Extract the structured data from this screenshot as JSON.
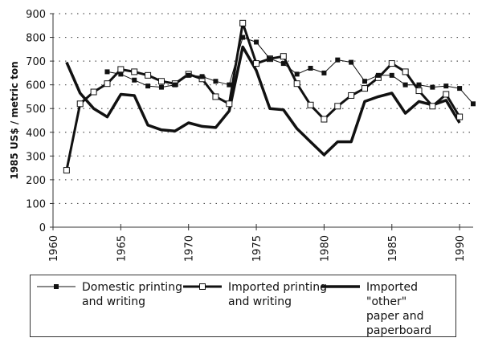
{
  "chart_data": {
    "type": "line",
    "title": "",
    "xlabel": "",
    "ylabel": "1985 US$ / metric ton",
    "xlim": [
      1960,
      1991
    ],
    "ylim": [
      0,
      900
    ],
    "x_ticks": [
      1960,
      1965,
      1970,
      1975,
      1980,
      1985,
      1990
    ],
    "y_ticks": [
      0,
      100,
      200,
      300,
      400,
      500,
      600,
      700,
      800,
      900
    ],
    "grid": "horizontal dotted",
    "legend_position": "bottom",
    "series": [
      {
        "name": "Domestic printing and writing",
        "style": "thin line, filled square markers",
        "x": [
          1964,
          1965,
          1966,
          1967,
          1968,
          1969,
          1970,
          1971,
          1972,
          1973,
          1974,
          1975,
          1976,
          1977,
          1978,
          1979,
          1980,
          1981,
          1982,
          1983,
          1984,
          1985,
          1986,
          1987,
          1988,
          1989,
          1990,
          1991
        ],
        "values": [
          655,
          645,
          620,
          595,
          590,
          600,
          640,
          635,
          615,
          600,
          800,
          780,
          710,
          690,
          645,
          670,
          650,
          705,
          695,
          615,
          640,
          640,
          600,
          600,
          590,
          595,
          585,
          520
        ]
      },
      {
        "name": "Imported printing and writing",
        "style": "thick line, open square markers",
        "x": [
          1961,
          1962,
          1963,
          1964,
          1965,
          1966,
          1967,
          1968,
          1969,
          1970,
          1971,
          1972,
          1973,
          1974,
          1975,
          1976,
          1977,
          1978,
          1979,
          1980,
          1981,
          1982,
          1983,
          1984,
          1985,
          1986,
          1987,
          1988,
          1989,
          1990
        ],
        "values": [
          240,
          520,
          570,
          605,
          665,
          655,
          640,
          615,
          605,
          645,
          625,
          550,
          520,
          860,
          690,
          710,
          720,
          605,
          515,
          455,
          510,
          555,
          585,
          630,
          690,
          655,
          575,
          510,
          560,
          465
        ]
      },
      {
        "name": "Imported \"other\" paper and paperboard",
        "style": "thick line, no markers",
        "x": [
          1961,
          1962,
          1963,
          1964,
          1965,
          1966,
          1967,
          1968,
          1969,
          1970,
          1971,
          1972,
          1973,
          1974,
          1975,
          1976,
          1977,
          1978,
          1979,
          1980,
          1981,
          1982,
          1983,
          1984,
          1985,
          1986,
          1987,
          1988,
          1989,
          1990
        ],
        "values": [
          695,
          565,
          500,
          465,
          560,
          555,
          430,
          410,
          405,
          440,
          425,
          420,
          490,
          760,
          660,
          500,
          495,
          415,
          360,
          305,
          360,
          360,
          530,
          550,
          565,
          480,
          530,
          515,
          535,
          440
        ]
      }
    ]
  },
  "legend": {
    "items": [
      {
        "label": "Domestic printing\nand writing"
      },
      {
        "label": "Imported printing\nand writing"
      },
      {
        "label": "Imported \"other\"\npaper and\npaperboard"
      }
    ]
  }
}
